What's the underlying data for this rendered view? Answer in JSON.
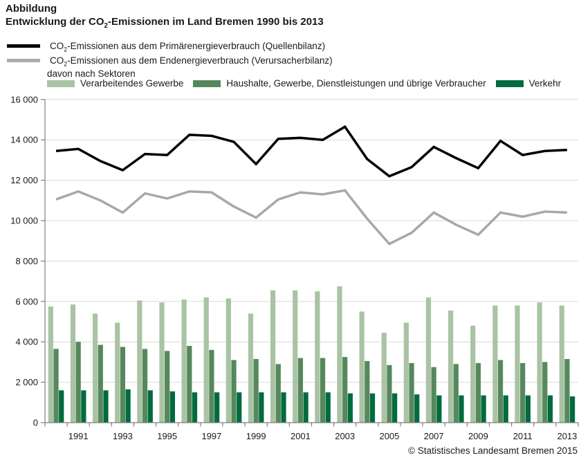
{
  "header": {
    "label": "Abbildung",
    "title_pre": "Entwicklung der CO",
    "title_sub": "2",
    "title_post": "-Emissionen im Land Bremen 1990 bis 2013"
  },
  "legend": {
    "lines": [
      {
        "pre": "CO",
        "sub": "2",
        "post": "-Emissionen aus dem Primärenergieverbrauch (Quellenbilanz)",
        "color": "#000000"
      },
      {
        "pre": "CO",
        "sub": "2",
        "post": "-Emissionen aus dem Endenergieverbrauch (Verursacherbilanz)",
        "color": "#ababab"
      }
    ],
    "sector_intro": "davon nach Sektoren",
    "sectors": [
      {
        "label": "Verarbeitendes Gewerbe",
        "color": "#a9c3a4"
      },
      {
        "label": "Haushalte, Gewerbe, Dienstleistungen und übrige Verbraucher",
        "color": "#55885c"
      },
      {
        "label": "Verkehr",
        "color": "#006b3d"
      }
    ]
  },
  "chart_data": {
    "type": "bar+line",
    "title": "Entwicklung der CO2-Emissionen im Land Bremen 1990 bis 2013",
    "xlabel": "",
    "ylabel": "",
    "x": [
      1990,
      1991,
      1992,
      1993,
      1994,
      1995,
      1996,
      1997,
      1998,
      1999,
      2000,
      2001,
      2002,
      2003,
      2004,
      2005,
      2006,
      2007,
      2008,
      2009,
      2010,
      2011,
      2012,
      2013
    ],
    "x_tick_labels": [
      "1991",
      "1993",
      "1995",
      "1997",
      "1999",
      "2001",
      "2003",
      "2005",
      "2007",
      "2009",
      "2011",
      "2013"
    ],
    "ylim": [
      0,
      16000
    ],
    "ytick_step": 2000,
    "ytick_labels": [
      "0",
      "2 000",
      "4 000",
      "6 000",
      "8 000",
      "10 000",
      "12 000",
      "14 000",
      "16 000"
    ],
    "grid": "horizontal",
    "legend_position": "top",
    "series": [
      {
        "name": "CO2-Emissionen aus dem Primärenergieverbrauch (Quellenbilanz)",
        "type": "line",
        "color": "#000000",
        "values": [
          13450,
          13550,
          12950,
          12500,
          13300,
          13250,
          14250,
          14200,
          13900,
          12800,
          14050,
          14100,
          14000,
          14650,
          13050,
          12200,
          12650,
          13650,
          13100,
          12600,
          13950,
          13250,
          13450,
          13500
        ]
      },
      {
        "name": "CO2-Emissionen aus dem Endenergieverbrauch (Verursacherbilanz)",
        "type": "line",
        "color": "#a8a8a8",
        "values": [
          11050,
          11450,
          11000,
          10400,
          11350,
          11100,
          11450,
          11400,
          10700,
          10150,
          11050,
          11400,
          11300,
          11500,
          10100,
          8850,
          9400,
          10400,
          9800,
          9300,
          10400,
          10200,
          10450,
          10400
        ]
      },
      {
        "name": "Verarbeitendes Gewerbe",
        "type": "bar",
        "color": "#a9c3a4",
        "values": [
          5750,
          5850,
          5400,
          4950,
          6050,
          5950,
          6100,
          6200,
          6150,
          5400,
          6550,
          6550,
          6500,
          6750,
          5500,
          4450,
          4950,
          6200,
          5550,
          4800,
          5800,
          5800,
          5950,
          5800
        ]
      },
      {
        "name": "Haushalte, Gewerbe, Dienstleistungen und übrige Verbraucher",
        "type": "bar",
        "color": "#55885c",
        "values": [
          3650,
          4000,
          3850,
          3750,
          3650,
          3550,
          3800,
          3600,
          3100,
          3150,
          2900,
          3200,
          3200,
          3250,
          3050,
          2850,
          2950,
          2750,
          2900,
          2950,
          3100,
          2950,
          3000,
          3150
        ]
      },
      {
        "name": "Verkehr",
        "type": "bar",
        "color": "#006b3d",
        "values": [
          1600,
          1600,
          1600,
          1650,
          1600,
          1550,
          1500,
          1500,
          1500,
          1500,
          1500,
          1500,
          1500,
          1450,
          1450,
          1450,
          1400,
          1350,
          1350,
          1350,
          1350,
          1350,
          1350,
          1300
        ]
      }
    ],
    "colors": {
      "grid": "#d9d9d9",
      "axis": "#7f7f7f",
      "text": "#1a1a1a"
    }
  },
  "footer": {
    "copyright": "© Statistisches Landesamt Bremen 2015"
  }
}
